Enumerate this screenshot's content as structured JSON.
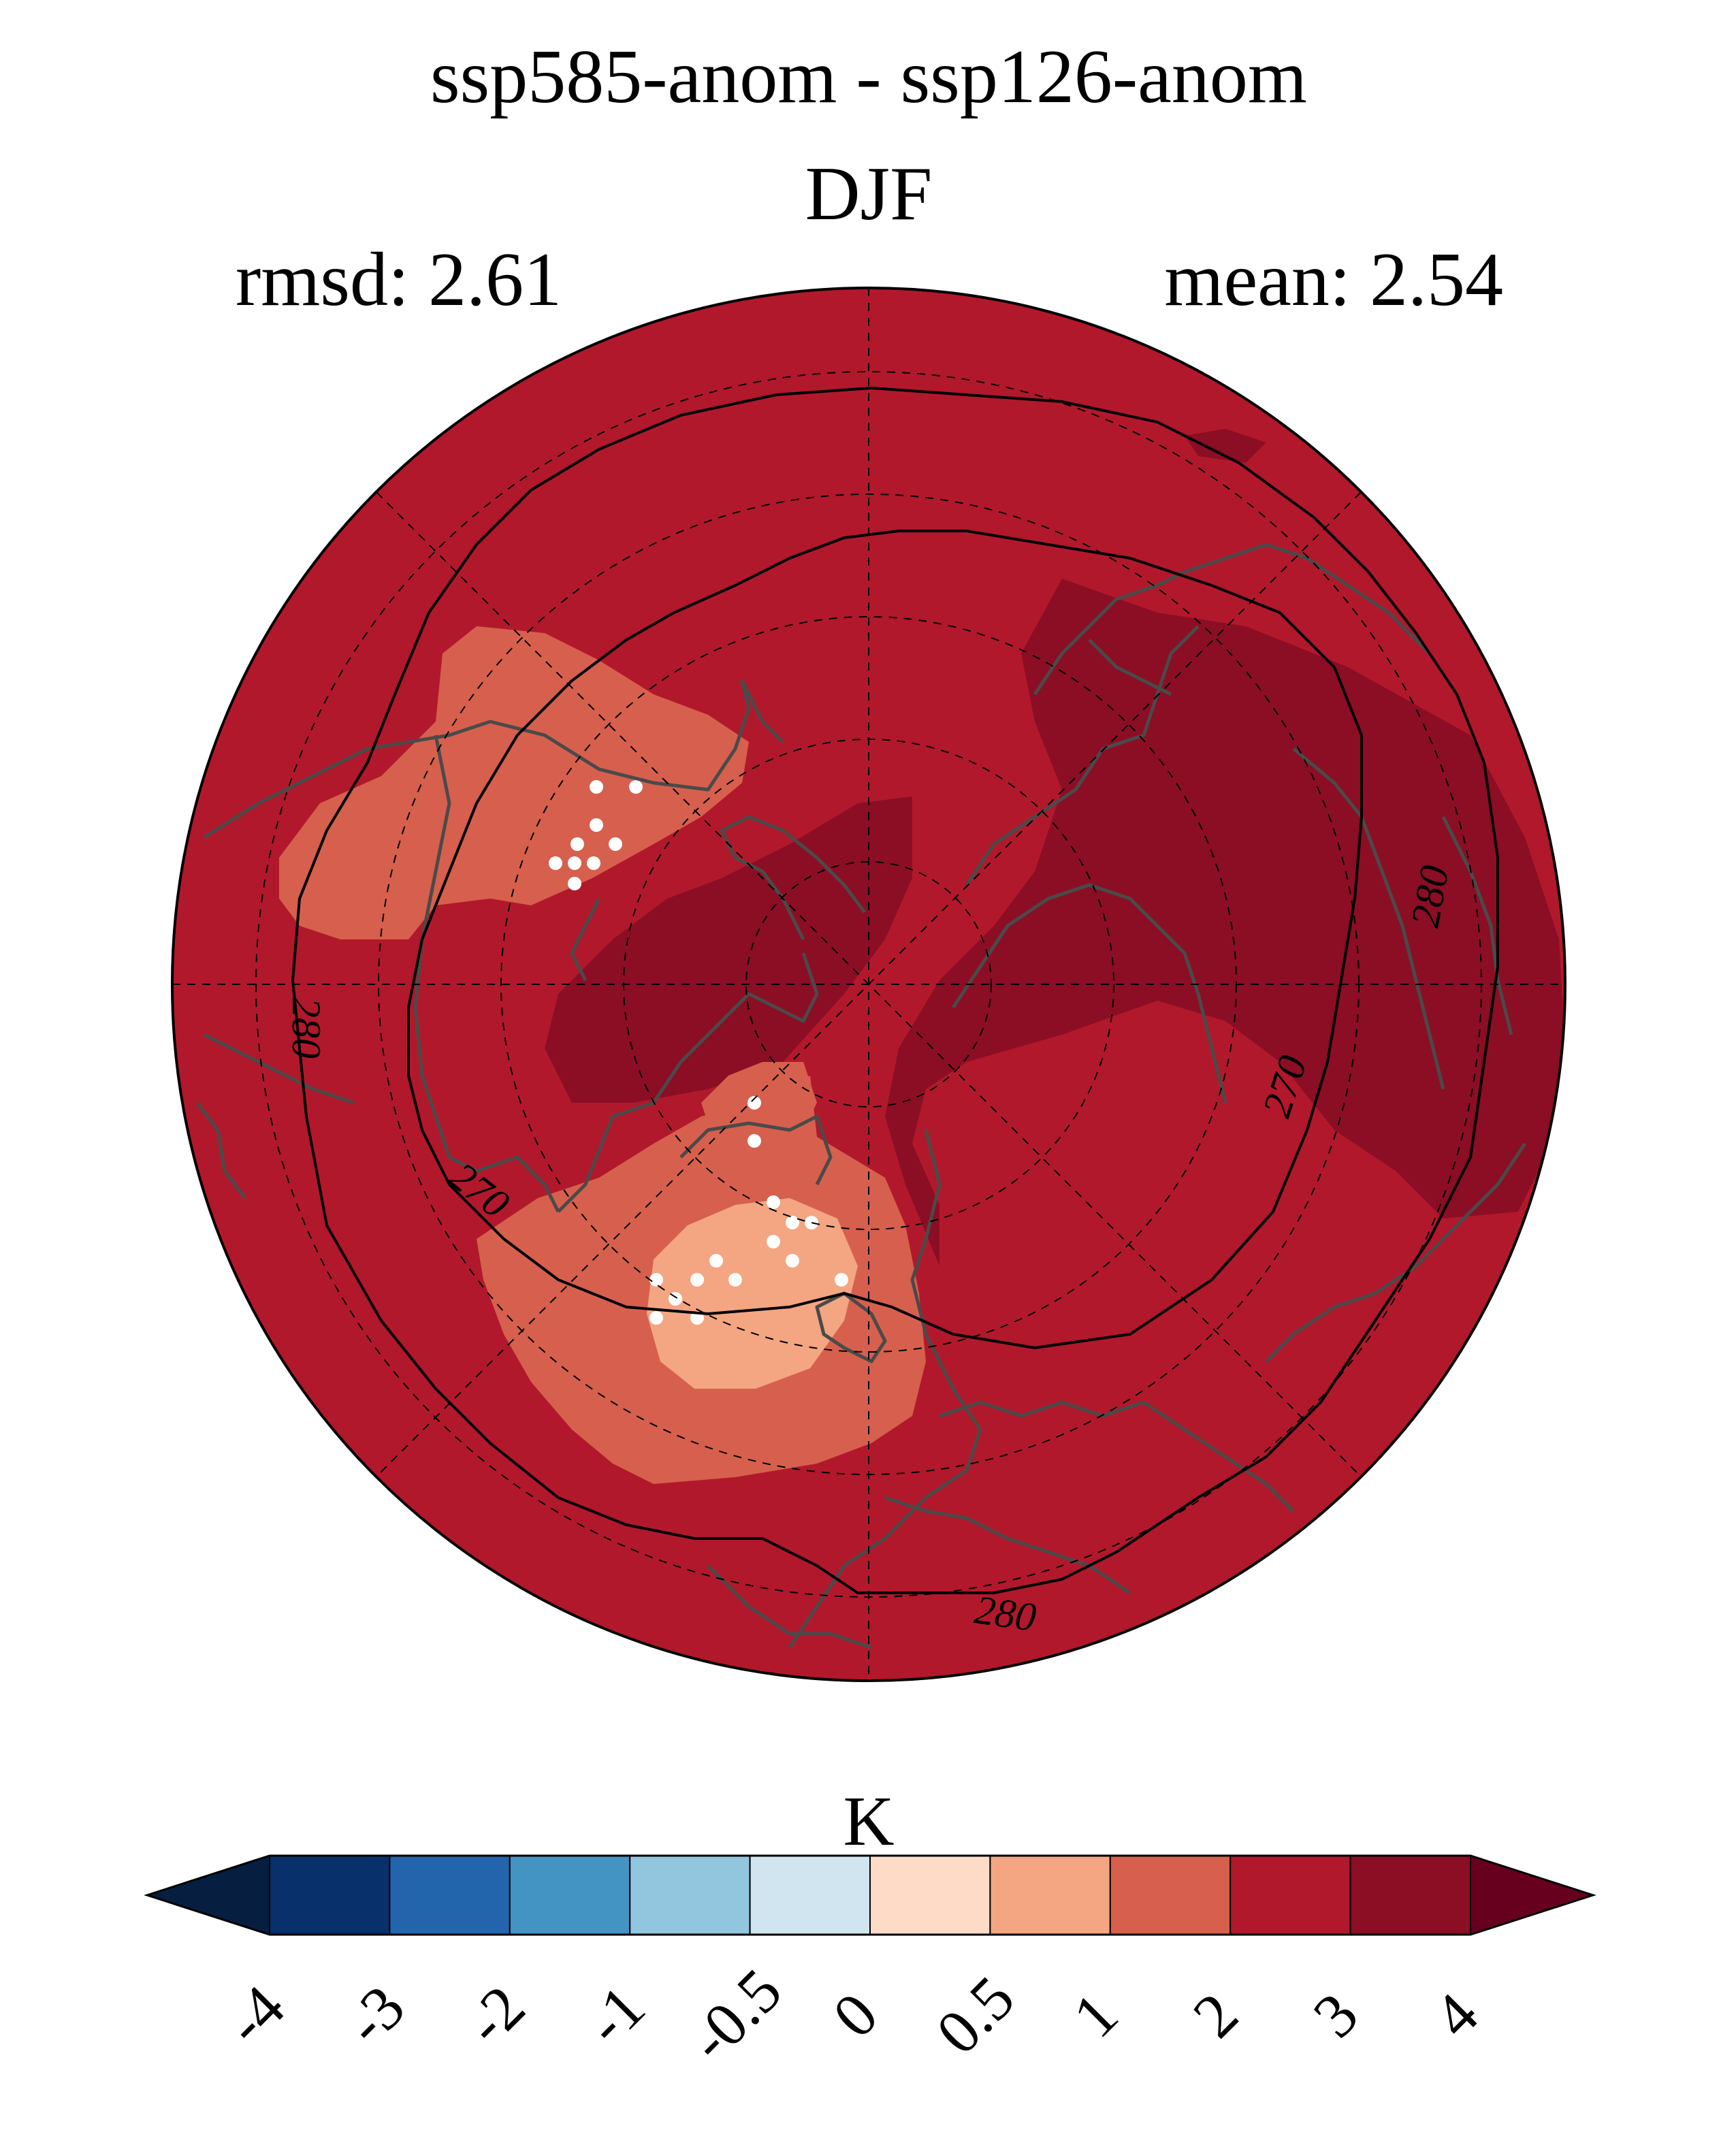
{
  "title": "ssp585-anom - ssp126-anom",
  "season": "DJF",
  "stats": {
    "rmsd": "rmsd: 2.61",
    "mean": "mean: 2.54"
  },
  "map": {
    "projection": "north-polar-stereographic",
    "contour_labels": [
      "280",
      "270",
      "270",
      "280",
      "280"
    ],
    "colors": {
      "land_outline": "#4a4a4a",
      "contour_line": "#000000",
      "stipple": "#ffffff",
      "grid": "#000000"
    }
  },
  "colorbar": {
    "unit_label": "K",
    "tick_labels": [
      "-4",
      "-3",
      "-2",
      "-1",
      "-0.5",
      "0",
      "0.5",
      "1",
      "2",
      "3",
      "4"
    ],
    "colors": {
      "under": "#061f40",
      "bins": [
        "#08306b",
        "#2265ad",
        "#4393c3",
        "#92c5de",
        "#d1e5f0",
        "#fddbc7",
        "#f4a582",
        "#d6604d",
        "#b2182b",
        "#8b0e24"
      ],
      "over": "#67001f"
    }
  }
}
